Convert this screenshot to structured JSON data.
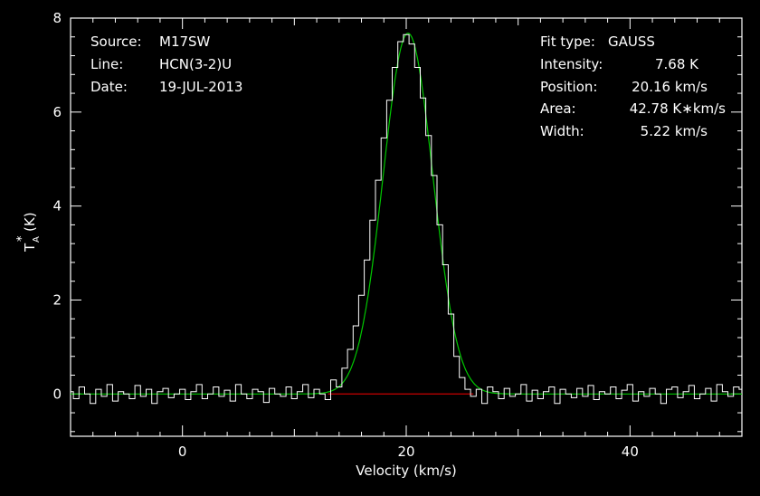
{
  "info_left": {
    "source_label": "Source:",
    "source_value": "M17SW",
    "line_label": "Line:",
    "line_value": "HCN(3-2)U",
    "date_label": "Date:",
    "date_value": "19-JUL-2013"
  },
  "info_right": {
    "fit_label": "Fit type:",
    "fit_value": "GAUSS",
    "intensity_label": "Intensity:",
    "intensity_value": "7.68 K",
    "position_label": "Position:",
    "position_value": "20.16 km/s",
    "area_label": "Area:",
    "area_value": "42.78 K∗km/s",
    "width_label": "Width:",
    "width_value": "5.22 km/s"
  },
  "colors": {
    "background": "#000000",
    "axes": "#ffffff",
    "spectrum": "#ffffff",
    "fit": "#00c800",
    "baseline": "#c80000"
  },
  "chart_data": {
    "type": "line",
    "xlabel": "Velocity (km/s)",
    "ylabel_main": "T",
    "ylabel_sub": "A",
    "ylabel_sup": "*",
    "ylabel_unit": "(K)",
    "xlim": [
      -10,
      50
    ],
    "ylim": [
      -0.9,
      8
    ],
    "xticks": [
      0,
      20,
      40
    ],
    "yticks": [
      0,
      2,
      4,
      6,
      8
    ],
    "grid": false,
    "legend": "none",
    "series": [
      {
        "style": "histogram",
        "x": [
          -10,
          -9.5,
          -9,
          -8.5,
          -8,
          -7.5,
          -7,
          -6.5,
          -6,
          -5.5,
          -5,
          -4.5,
          -4,
          -3.5,
          -3,
          -2.5,
          -2,
          -1.5,
          -1,
          -0.5,
          0,
          0.5,
          1,
          1.5,
          2,
          2.5,
          3,
          3.5,
          4,
          4.5,
          5,
          5.5,
          6,
          6.5,
          7,
          7.5,
          8,
          8.5,
          9,
          9.5,
          10,
          10.5,
          11,
          11.5,
          12,
          12.5,
          13,
          13.5,
          14,
          14.5,
          15,
          15.5,
          16,
          16.5,
          17,
          17.5,
          18,
          18.5,
          19,
          19.5,
          20,
          20.5,
          21,
          21.5,
          22,
          22.5,
          23,
          23.5,
          24,
          24.5,
          25,
          25.5,
          26,
          26.5,
          27,
          27.5,
          28,
          28.5,
          29,
          29.5,
          30,
          30.5,
          31,
          31.5,
          32,
          32.5,
          33,
          33.5,
          34,
          34.5,
          35,
          35.5,
          36,
          36.5,
          37,
          37.5,
          38,
          38.5,
          39,
          39.5,
          40,
          40.5,
          41,
          41.5,
          42,
          42.5,
          43,
          43.5,
          44,
          44.5,
          45,
          45.5,
          46,
          46.5,
          47,
          47.5,
          48,
          48.5,
          49,
          49.5,
          50
        ],
        "y": [
          0.05,
          -0.1,
          0.15,
          0.0,
          -0.2,
          0.1,
          -0.05,
          0.2,
          -0.15,
          0.05,
          0.0,
          -0.1,
          0.18,
          -0.05,
          0.1,
          -0.2,
          0.05,
          0.12,
          -0.08,
          0.0,
          0.1,
          -0.12,
          0.05,
          0.2,
          -0.1,
          0.0,
          0.15,
          -0.05,
          0.08,
          -0.15,
          0.2,
          0.0,
          -0.1,
          0.1,
          0.05,
          -0.18,
          0.12,
          0.0,
          -0.05,
          0.15,
          -0.1,
          0.05,
          0.2,
          -0.08,
          0.1,
          0.0,
          -0.12,
          0.3,
          0.15,
          0.55,
          0.95,
          1.45,
          2.1,
          2.85,
          3.7,
          4.55,
          5.45,
          6.25,
          6.95,
          7.5,
          7.65,
          7.45,
          6.95,
          6.3,
          5.5,
          4.65,
          3.6,
          2.75,
          1.7,
          0.8,
          0.35,
          0.1,
          -0.05,
          0.1,
          -0.2,
          0.15,
          0.05,
          -0.1,
          0.12,
          -0.05,
          0.0,
          0.2,
          -0.15,
          0.08,
          -0.1,
          0.05,
          0.15,
          -0.2,
          0.1,
          0.0,
          -0.08,
          0.12,
          -0.05,
          0.18,
          -0.12,
          0.05,
          0.0,
          0.15,
          -0.1,
          0.08,
          0.2,
          -0.15,
          0.05,
          -0.05,
          0.12,
          0.0,
          -0.2,
          0.1,
          0.15,
          -0.08,
          0.05,
          0.18,
          -0.1,
          0.0,
          0.12,
          -0.15,
          0.2,
          0.05,
          -0.05,
          0.15,
          0.1
        ]
      },
      {
        "style": "gaussian-fit",
        "amplitude": 7.68,
        "center": 20.16,
        "fwhm": 5.22
      },
      {
        "style": "baseline",
        "x": [
          13,
          26
        ],
        "y": [
          0,
          0
        ]
      }
    ]
  }
}
